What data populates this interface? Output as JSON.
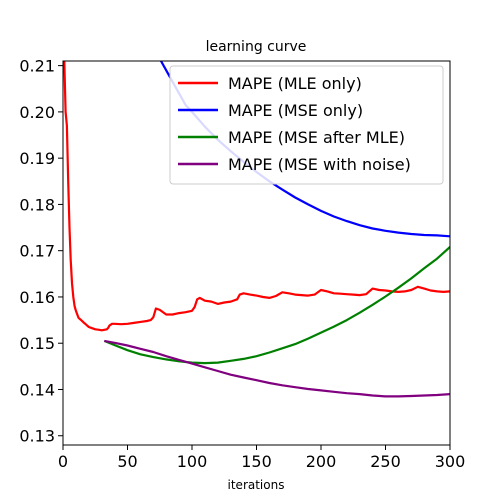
{
  "chart_data": {
    "type": "line",
    "title": "learning curve",
    "xlabel": "iterations",
    "ylabel": "",
    "xlim": [
      0,
      300
    ],
    "ylim": [
      0.128,
      0.211
    ],
    "x_ticks": [
      0,
      50,
      100,
      150,
      200,
      250,
      300
    ],
    "y_ticks": [
      0.13,
      0.14,
      0.15,
      0.16,
      0.17,
      0.18,
      0.19,
      0.2,
      0.21
    ],
    "x_tick_labels": [
      "0",
      "50",
      "100",
      "150",
      "200",
      "250",
      "300"
    ],
    "y_tick_labels": [
      "0.13",
      "0.14",
      "0.15",
      "0.16",
      "0.17",
      "0.18",
      "0.19",
      "0.20",
      "0.21"
    ],
    "grid": false,
    "legend_position": "top-right",
    "series": [
      {
        "name": "MAPE (MLE only)",
        "color": "#ff0000",
        "x": [
          1,
          2,
          3,
          4,
          5,
          6,
          7,
          8,
          9,
          10,
          12,
          14,
          16,
          18,
          20,
          22,
          25,
          28,
          30,
          32,
          34,
          35,
          36,
          38,
          40,
          45,
          50,
          55,
          60,
          65,
          68,
          70,
          72,
          75,
          80,
          85,
          90,
          95,
          100,
          102,
          104,
          106,
          110,
          115,
          120,
          125,
          130,
          135,
          137,
          140,
          145,
          150,
          155,
          160,
          165,
          170,
          175,
          180,
          185,
          190,
          195,
          200,
          205,
          210,
          215,
          220,
          225,
          230,
          235,
          240,
          245,
          250,
          255,
          260,
          265,
          270,
          275,
          280,
          285,
          290,
          295,
          300
        ],
        "y": [
          0.211,
          0.2,
          0.197,
          0.185,
          0.175,
          0.168,
          0.163,
          0.16,
          0.158,
          0.157,
          0.1555,
          0.155,
          0.1545,
          0.154,
          0.1535,
          0.1533,
          0.153,
          0.1529,
          0.1528,
          0.1529,
          0.153,
          0.1533,
          0.1538,
          0.1542,
          0.1542,
          0.1541,
          0.1542,
          0.1544,
          0.1546,
          0.1548,
          0.155,
          0.1556,
          0.1575,
          0.1572,
          0.1562,
          0.1562,
          0.1565,
          0.1567,
          0.157,
          0.1578,
          0.1595,
          0.1598,
          0.1592,
          0.159,
          0.1585,
          0.1588,
          0.159,
          0.1595,
          0.1605,
          0.1608,
          0.1605,
          0.1603,
          0.16,
          0.1598,
          0.1602,
          0.161,
          0.1608,
          0.1605,
          0.1604,
          0.1603,
          0.1605,
          0.1615,
          0.1612,
          0.1608,
          0.1607,
          0.1606,
          0.1605,
          0.1604,
          0.1606,
          0.1618,
          0.1615,
          0.1614,
          0.1612,
          0.1611,
          0.1612,
          0.1615,
          0.1622,
          0.1618,
          0.1614,
          0.1612,
          0.1611,
          0.1612
        ]
      },
      {
        "name": "MAPE (MSE only)",
        "color": "#0000ff",
        "x": [
          76,
          80,
          85,
          90,
          95,
          100,
          110,
          120,
          130,
          140,
          150,
          160,
          170,
          180,
          190,
          200,
          210,
          220,
          230,
          240,
          250,
          260,
          270,
          280,
          290,
          300
        ],
        "y": [
          0.211,
          0.209,
          0.2065,
          0.204,
          0.2015,
          0.2,
          0.1968,
          0.194,
          0.1915,
          0.1892,
          0.187,
          0.185,
          0.1832,
          0.1815,
          0.18,
          0.1786,
          0.1774,
          0.1764,
          0.1755,
          0.1748,
          0.1743,
          0.1739,
          0.1736,
          0.1734,
          0.1733,
          0.1731
        ]
      },
      {
        "name": "MAPE (MSE after MLE)",
        "color": "#008000",
        "x": [
          32,
          40,
          50,
          60,
          70,
          80,
          90,
          100,
          110,
          120,
          130,
          140,
          150,
          160,
          170,
          180,
          190,
          200,
          210,
          220,
          230,
          240,
          250,
          260,
          270,
          280,
          290,
          300
        ],
        "y": [
          0.1505,
          0.1496,
          0.1485,
          0.1476,
          0.147,
          0.1465,
          0.1461,
          0.1458,
          0.1457,
          0.1458,
          0.1462,
          0.1466,
          0.1472,
          0.148,
          0.1489,
          0.1498,
          0.151,
          0.1523,
          0.1536,
          0.155,
          0.1566,
          0.1583,
          0.1601,
          0.162,
          0.164,
          0.1662,
          0.1683,
          0.1708
        ]
      },
      {
        "name": "MAPE (MSE with noise)",
        "color": "#800080",
        "x": [
          32,
          40,
          50,
          60,
          70,
          80,
          90,
          100,
          110,
          120,
          130,
          140,
          150,
          160,
          170,
          180,
          190,
          200,
          210,
          220,
          230,
          240,
          250,
          260,
          270,
          280,
          290,
          300
        ],
        "y": [
          0.1505,
          0.1501,
          0.1495,
          0.1488,
          0.1481,
          0.1472,
          0.1464,
          0.1456,
          0.1448,
          0.144,
          0.1432,
          0.1426,
          0.142,
          0.1414,
          0.1409,
          0.1405,
          0.1401,
          0.1398,
          0.1395,
          0.1392,
          0.139,
          0.1387,
          0.1385,
          0.1385,
          0.1386,
          0.1387,
          0.1388,
          0.139
        ]
      }
    ]
  }
}
